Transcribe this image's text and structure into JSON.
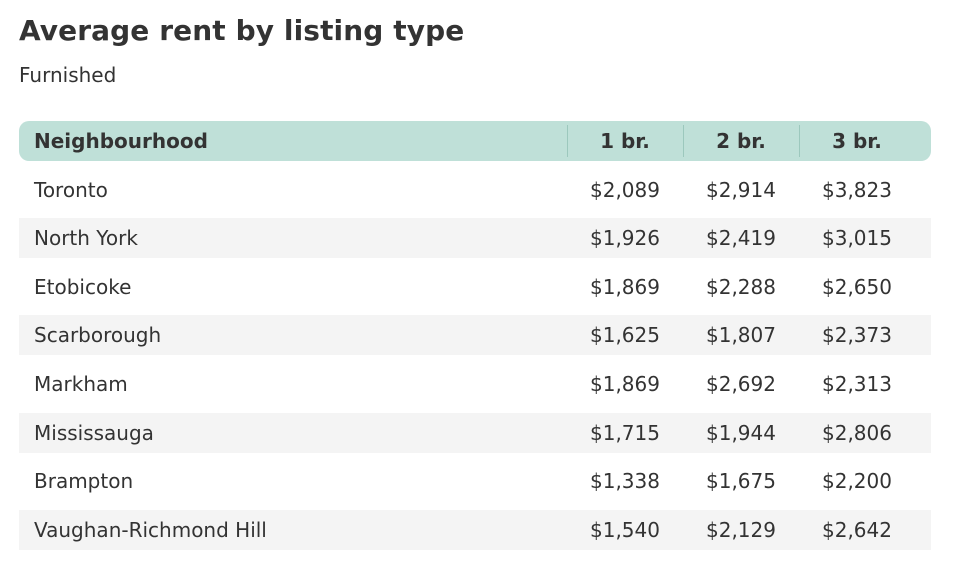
{
  "colors": {
    "header_bg": "#bfe0d8",
    "alt_row_bg": "#f4f4f4",
    "text": "#333333"
  },
  "chart_data": {
    "type": "table",
    "title": "Average rent by listing type",
    "subtitle": "Furnished",
    "columns": [
      "Neighbourhood",
      "1 br.",
      "2 br.",
      "3 br."
    ],
    "rows": [
      {
        "name": "Toronto",
        "values": [
          "$2,089",
          "$2,914",
          "$3,823"
        ]
      },
      {
        "name": "North York",
        "values": [
          "$1,926",
          "$2,419",
          "$3,015"
        ]
      },
      {
        "name": "Etobicoke",
        "values": [
          "$1,869",
          "$2,288",
          "$2,650"
        ]
      },
      {
        "name": "Scarborough",
        "values": [
          "$1,625",
          "$1,807",
          "$2,373"
        ]
      },
      {
        "name": "Markham",
        "values": [
          "$1,869",
          "$2,692",
          "$2,313"
        ]
      },
      {
        "name": "Mississauga",
        "values": [
          "$1,715",
          "$1,944",
          "$2,806"
        ]
      },
      {
        "name": "Brampton",
        "values": [
          "$1,338",
          "$1,675",
          "$2,200"
        ]
      },
      {
        "name": "Vaughan-Richmond Hill",
        "values": [
          "$1,540",
          "$2,129",
          "$2,642"
        ]
      }
    ]
  }
}
